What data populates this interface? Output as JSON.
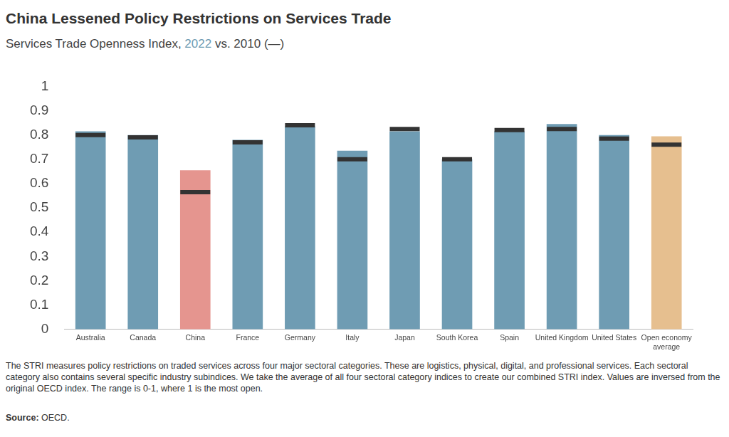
{
  "chart_data": {
    "type": "bar",
    "title": "China Lessened Policy Restrictions on Services Trade",
    "subtitle": "Services Trade Openness Index, 2022 vs. 2010 (—)",
    "note": "The STRI measures policy restrictions on traded services across four major sectoral categories. These are logistics, physical, digital, and professional services. Each sectoral category also contains several specific industry subindices. We take the average of all four sectoral category indices to create our combined STRI index. Values are inversed from the original OECD index. The range is 0-1, where 1 is the most open.",
    "source": "Source: OECD.",
    "categories": [
      "Australia",
      "Canada",
      "China",
      "France",
      "Germany",
      "Italy",
      "Japan",
      "South Korea",
      "Spain",
      "United Kingdom",
      "United States",
      "Open economy average"
    ],
    "series": [
      {
        "name": "2022",
        "type": "bar",
        "colors": [
          "#6f9cb3",
          "#6f9cb3",
          "#e5958f",
          "#6f9cb3",
          "#6f9cb3",
          "#6f9cb3",
          "#6f9cb3",
          "#6f9cb3",
          "#6f9cb3",
          "#6f9cb3",
          "#6f9cb3",
          "#e6bf8f"
        ],
        "values": [
          0.815,
          0.8,
          0.655,
          0.78,
          0.835,
          0.735,
          0.815,
          0.7,
          0.815,
          0.845,
          0.8,
          0.795
        ]
      },
      {
        "name": "2010",
        "type": "scatter",
        "color": "#333333",
        "marker": "line",
        "values": [
          0.8,
          0.79,
          0.565,
          0.77,
          0.84,
          0.7,
          0.825,
          0.7,
          0.82,
          0.825,
          0.785,
          0.76
        ]
      }
    ],
    "ylim": [
      0,
      1
    ],
    "yticks": [
      0,
      0.1,
      0.2,
      0.3,
      0.4,
      0.5,
      0.6,
      0.7,
      0.8,
      0.9,
      1
    ],
    "grid": false
  }
}
